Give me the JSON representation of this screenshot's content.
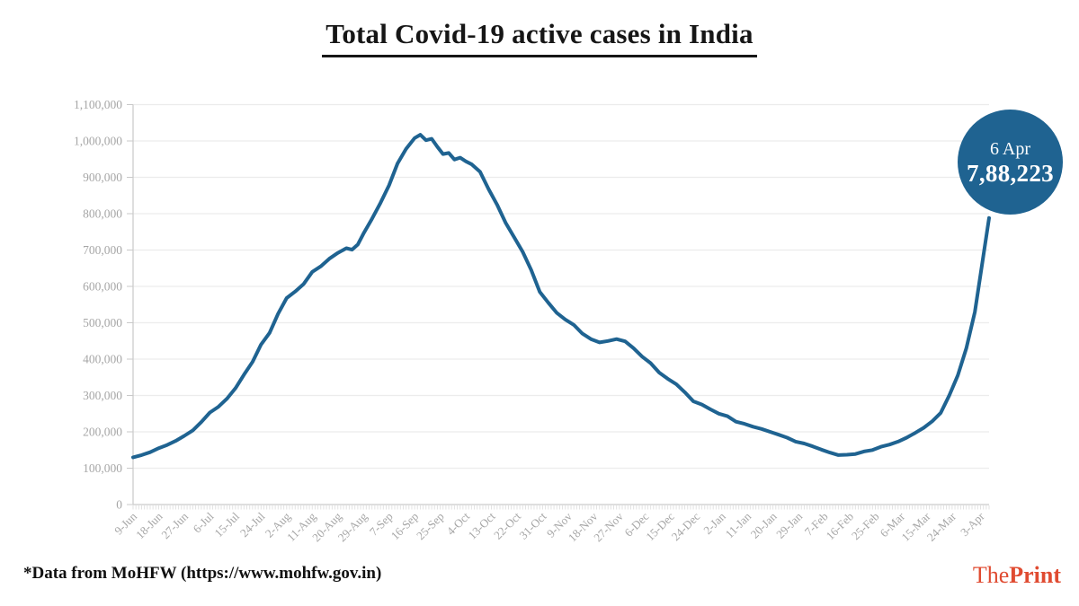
{
  "title": "Total Covid-19 active cases in India",
  "badge": {
    "date": "6 Apr",
    "value": "7,88,223"
  },
  "footer": {
    "source_note": "*Data from MoHFW (https://www.mohfw.gov.in)"
  },
  "brand": {
    "the": "The",
    "print": "Print"
  },
  "colors": {
    "line": "#1f6391",
    "badge_bg": "#1f6391",
    "badge_text": "#ffffff",
    "grid": "#ececec",
    "axis": "#c9c9c9",
    "minor_tick": "#e2e2e2",
    "tick_label": "#a6a6a6",
    "title_text": "#161616",
    "brand": "#e04b31"
  },
  "chart_data": {
    "type": "line",
    "title": "Total Covid-19 active cases in India",
    "xlabel": "",
    "ylabel": "",
    "x_unit": "days since 9-Jun-2020",
    "day_span": 301,
    "grid": true,
    "legend_position": "none",
    "y_min": 0,
    "y_max": 1100000,
    "y_tick_interval": 100000,
    "y_tick_labels": [
      "0",
      "100,000",
      "200,000",
      "300,000",
      "400,000",
      "500,000",
      "600,000",
      "700,000",
      "800,000",
      "900,000",
      "1,000,000",
      "1,100,000"
    ],
    "x_tick_days": [
      0,
      9,
      18,
      27,
      36,
      45,
      54,
      63,
      72,
      81,
      90,
      99,
      108,
      117,
      126,
      135,
      144,
      153,
      162,
      171,
      180,
      189,
      198,
      207,
      216,
      225,
      234,
      243,
      252,
      261,
      270,
      279,
      288,
      298
    ],
    "x_tick_labels": [
      "9-Jun",
      "18-Jun",
      "27-Jun",
      "6-Jul",
      "15-Jul",
      "24-Jul",
      "2-Aug",
      "11-Aug",
      "20-Aug",
      "29-Aug",
      "7-Sep",
      "16-Sep",
      "25-Sep",
      "4-Oct",
      "13-Oct",
      "22-Oct",
      "31-Oct",
      "9-Nov",
      "18-Nov",
      "27-Nov",
      "6-Dec",
      "15-Dec",
      "24-Dec",
      "2-Jan",
      "11-Jan",
      "20-Jan",
      "29-Jan",
      "7-Feb",
      "16-Feb",
      "25-Feb",
      "6-Mar",
      "15-Mar",
      "24-Mar",
      "3-Apr"
    ],
    "series": [
      {
        "name": "Active cases",
        "color": "#1f6391",
        "points": [
          [
            0,
            130000
          ],
          [
            3,
            136000
          ],
          [
            6,
            144000
          ],
          [
            9,
            155000
          ],
          [
            12,
            164000
          ],
          [
            15,
            175000
          ],
          [
            18,
            189000
          ],
          [
            21,
            204000
          ],
          [
            24,
            227000
          ],
          [
            27,
            253000
          ],
          [
            30,
            269000
          ],
          [
            33,
            291000
          ],
          [
            36,
            320000
          ],
          [
            39,
            357000
          ],
          [
            42,
            392000
          ],
          [
            45,
            440000
          ],
          [
            48,
            472000
          ],
          [
            51,
            525000
          ],
          [
            54,
            568000
          ],
          [
            57,
            586000
          ],
          [
            60,
            607000
          ],
          [
            63,
            640000
          ],
          [
            66,
            655000
          ],
          [
            69,
            676000
          ],
          [
            72,
            692000
          ],
          [
            75,
            705000
          ],
          [
            77,
            701000
          ],
          [
            79,
            715000
          ],
          [
            81,
            745000
          ],
          [
            84,
            786000
          ],
          [
            87,
            830000
          ],
          [
            90,
            878000
          ],
          [
            93,
            938000
          ],
          [
            96,
            978000
          ],
          [
            99,
            1008000
          ],
          [
            101,
            1017000
          ],
          [
            103,
            1002000
          ],
          [
            105,
            1006000
          ],
          [
            107,
            984000
          ],
          [
            109,
            964000
          ],
          [
            111,
            967000
          ],
          [
            113,
            949000
          ],
          [
            115,
            954000
          ],
          [
            117,
            944000
          ],
          [
            119,
            936000
          ],
          [
            122,
            915000
          ],
          [
            125,
            868000
          ],
          [
            128,
            825000
          ],
          [
            131,
            775000
          ],
          [
            134,
            735000
          ],
          [
            137,
            695000
          ],
          [
            140,
            645000
          ],
          [
            143,
            585000
          ],
          [
            146,
            555000
          ],
          [
            149,
            527000
          ],
          [
            152,
            509000
          ],
          [
            155,
            494000
          ],
          [
            158,
            470000
          ],
          [
            161,
            455000
          ],
          [
            164,
            446000
          ],
          [
            167,
            450000
          ],
          [
            170,
            455000
          ],
          [
            173,
            449000
          ],
          [
            176,
            430000
          ],
          [
            179,
            407000
          ],
          [
            182,
            389000
          ],
          [
            185,
            363000
          ],
          [
            188,
            346000
          ],
          [
            191,
            331000
          ],
          [
            194,
            309000
          ],
          [
            197,
            284000
          ],
          [
            200,
            275000
          ],
          [
            203,
            262000
          ],
          [
            206,
            250000
          ],
          [
            209,
            243000
          ],
          [
            212,
            228000
          ],
          [
            215,
            222000
          ],
          [
            218,
            214000
          ],
          [
            221,
            208000
          ],
          [
            224,
            200000
          ],
          [
            227,
            192000
          ],
          [
            230,
            184000
          ],
          [
            233,
            173000
          ],
          [
            236,
            168000
          ],
          [
            239,
            160000
          ],
          [
            242,
            151000
          ],
          [
            245,
            143000
          ],
          [
            248,
            136000
          ],
          [
            251,
            137000
          ],
          [
            254,
            139000
          ],
          [
            257,
            146000
          ],
          [
            260,
            150000
          ],
          [
            263,
            159000
          ],
          [
            266,
            165000
          ],
          [
            269,
            173000
          ],
          [
            272,
            184000
          ],
          [
            275,
            197000
          ],
          [
            278,
            211000
          ],
          [
            281,
            229000
          ],
          [
            284,
            252000
          ],
          [
            287,
            300000
          ],
          [
            290,
            355000
          ],
          [
            293,
            430000
          ],
          [
            296,
            530000
          ],
          [
            299,
            685000
          ],
          [
            301,
            788223
          ]
        ]
      }
    ],
    "annotation": {
      "day": 301,
      "date_label": "6 Apr",
      "value": 788223,
      "value_label": "7,88,223"
    }
  }
}
